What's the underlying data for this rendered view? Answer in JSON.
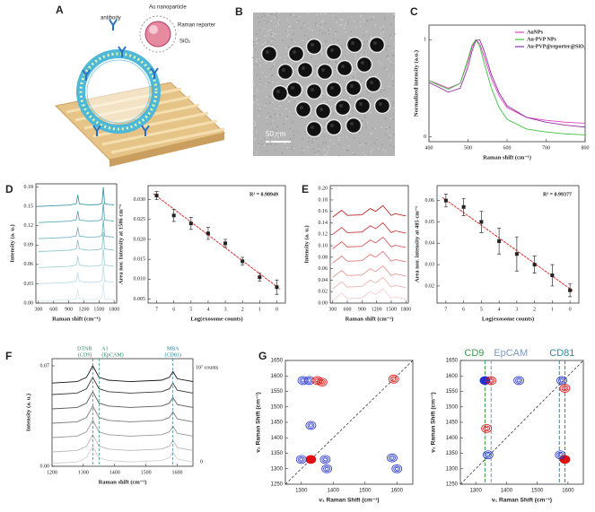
{
  "illustration": {
    "panel": "A",
    "labels": [
      "antibody",
      "Au nanoparticle",
      "Raman reporter",
      "SiO₂"
    ]
  },
  "micrograph": {
    "panel": "B",
    "scale_bar": "50 nm"
  },
  "chart_data": [
    {
      "type": "line",
      "panel": "C",
      "xlabel": "Raman shift (cm⁻¹)",
      "ylabel": "Normalized intensity (a.u.)",
      "x": [
        400,
        420,
        450,
        480,
        500,
        510,
        520,
        530,
        540,
        560,
        580,
        600,
        650,
        700,
        750,
        800
      ],
      "series": [
        {
          "name": "AuNPs",
          "color": "#e040c0",
          "values": [
            0.58,
            0.55,
            0.5,
            0.55,
            0.78,
            0.92,
            1.0,
            0.96,
            0.84,
            0.6,
            0.42,
            0.3,
            0.2,
            0.17,
            0.15,
            0.14
          ]
        },
        {
          "name": "Au-PVP NPs",
          "color": "#40c040",
          "values": [
            0.58,
            0.54,
            0.49,
            0.55,
            0.8,
            0.94,
            1.0,
            0.93,
            0.78,
            0.5,
            0.3,
            0.18,
            0.08,
            0.05,
            0.03,
            0.02
          ]
        },
        {
          "name": "Au-PVP@reporter@SiO₂",
          "color": "#9030a0",
          "values": [
            0.56,
            0.52,
            0.46,
            0.5,
            0.72,
            0.88,
            0.99,
            1.0,
            0.9,
            0.64,
            0.45,
            0.32,
            0.2,
            0.15,
            0.12,
            0.1
          ]
        }
      ],
      "xlim": [
        400,
        800
      ],
      "ylim": [
        -0.05,
        1.15
      ],
      "xticks": [
        400,
        500,
        600,
        700,
        800
      ],
      "yticks": [
        0,
        1
      ],
      "legend": "upper right"
    },
    {
      "type": "line",
      "panel": "D",
      "xlabel": "Raman shift (cm⁻¹)",
      "ylabel": "Intensity (a. u.)",
      "x": [
        300,
        600,
        900,
        1050,
        1080,
        1110,
        1300,
        1500,
        1560,
        1586,
        1610,
        1800
      ],
      "series": [
        {
          "color": "#d4eaee",
          "values": [
            0.003,
            0.004,
            0.005,
            0.007,
            0.021,
            0.007,
            0.005,
            0.006,
            0.008,
            0.033,
            0.007,
            0.005
          ]
        },
        {
          "color": "#bfe0e6",
          "values": [
            0.03,
            0.031,
            0.032,
            0.034,
            0.048,
            0.034,
            0.032,
            0.033,
            0.035,
            0.06,
            0.034,
            0.032
          ]
        },
        {
          "color": "#a6d4dc",
          "values": [
            0.055,
            0.056,
            0.057,
            0.059,
            0.073,
            0.059,
            0.057,
            0.058,
            0.06,
            0.085,
            0.059,
            0.057
          ]
        },
        {
          "color": "#8cc7d1",
          "values": [
            0.08,
            0.081,
            0.082,
            0.084,
            0.098,
            0.084,
            0.082,
            0.083,
            0.085,
            0.11,
            0.084,
            0.082
          ]
        },
        {
          "color": "#72b9c5",
          "values": [
            0.1,
            0.101,
            0.102,
            0.104,
            0.118,
            0.104,
            0.102,
            0.103,
            0.105,
            0.13,
            0.104,
            0.102
          ]
        },
        {
          "color": "#58abb9",
          "values": [
            0.125,
            0.126,
            0.127,
            0.129,
            0.143,
            0.129,
            0.127,
            0.128,
            0.13,
            0.155,
            0.129,
            0.127
          ]
        },
        {
          "color": "#3a9bab",
          "values": [
            0.15,
            0.151,
            0.152,
            0.154,
            0.168,
            0.154,
            0.152,
            0.153,
            0.155,
            0.18,
            0.154,
            0.152
          ]
        }
      ],
      "xlim": [
        250,
        1850
      ],
      "ylim": [
        0,
        0.185
      ],
      "xticks": [
        300,
        600,
        900,
        1200,
        1500,
        1800
      ],
      "yticks": [
        {
          "value": 0,
          "label": "0.00"
        },
        0.03,
        0.06,
        0.09,
        0.12,
        0.15,
        0.18
      ]
    },
    {
      "type": "scatter",
      "xlabel": "Log(exosome counts)",
      "ylabel": "Area nor. Intensity at 1586 cm⁻¹",
      "x": [
        7,
        6,
        5,
        4,
        3,
        2,
        1,
        0
      ],
      "values": [
        0.031,
        0.026,
        0.024,
        0.0215,
        0.019,
        0.0145,
        0.0105,
        0.008
      ],
      "errors": [
        0.001,
        0.0015,
        0.0015,
        0.0015,
        0.001,
        0.001,
        0.001,
        0.0018
      ],
      "fit": {
        "x": [
          7.2,
          -0.2
        ],
        "y": [
          0.0315,
          0.0075
        ]
      },
      "annotation": "R² = 0.98949",
      "xlim": [
        7.5,
        -0.5
      ],
      "ylim": [
        0.004,
        0.0335
      ],
      "xticks": [
        7,
        6,
        5,
        4,
        3,
        2,
        1,
        0
      ],
      "yticks": [
        0.005,
        {
          "value": 0.01,
          "label": "0.010"
        },
        0.015,
        {
          "value": 0.02,
          "label": "0.020"
        },
        0.025,
        {
          "value": 0.03,
          "label": "0.030"
        }
      ]
    },
    {
      "type": "line",
      "panel": "E",
      "xlabel": "Raman shift (cm⁻¹)",
      "ylabel": "Intensity (a. u.)",
      "x": [
        300,
        485,
        600,
        900,
        1070,
        1180,
        1330,
        1500,
        1580,
        1800
      ],
      "series": [
        {
          "color": "#f6d0d0",
          "values": [
            0.005,
            0.017,
            0.008,
            0.009,
            0.02,
            0.015,
            0.025,
            0.008,
            0.011,
            0.007
          ]
        },
        {
          "color": "#f0b4b4",
          "values": [
            0.025,
            0.037,
            0.028,
            0.029,
            0.04,
            0.035,
            0.045,
            0.028,
            0.031,
            0.027
          ]
        },
        {
          "color": "#ea9898",
          "values": [
            0.045,
            0.057,
            0.048,
            0.049,
            0.06,
            0.055,
            0.065,
            0.048,
            0.051,
            0.047
          ]
        },
        {
          "color": "#e27a7a",
          "values": [
            0.07,
            0.082,
            0.073,
            0.074,
            0.085,
            0.08,
            0.09,
            0.073,
            0.076,
            0.072
          ]
        },
        {
          "color": "#d85c5c",
          "values": [
            0.095,
            0.107,
            0.098,
            0.099,
            0.11,
            0.105,
            0.115,
            0.098,
            0.101,
            0.097
          ]
        },
        {
          "color": "#cc4040",
          "values": [
            0.12,
            0.132,
            0.123,
            0.124,
            0.135,
            0.13,
            0.14,
            0.123,
            0.126,
            0.122
          ]
        },
        {
          "color": "#bb2222",
          "values": [
            0.15,
            0.162,
            0.153,
            0.154,
            0.165,
            0.16,
            0.17,
            0.153,
            0.156,
            0.152
          ]
        }
      ],
      "xlim": [
        250,
        1850
      ],
      "ylim": [
        0,
        0.205
      ],
      "xticks": [
        300,
        600,
        900,
        1200,
        1500,
        1800
      ],
      "yticks": [
        {
          "value": 0,
          "label": "0.00"
        },
        0.02,
        0.04,
        0.06,
        0.08,
        {
          "value": 0.1,
          "label": "0.10"
        },
        0.12,
        0.14,
        0.16,
        0.18,
        {
          "value": 0.2,
          "label": "0.20"
        }
      ]
    },
    {
      "type": "scatter",
      "xlabel": "Log(exosome counts)",
      "ylabel": "Area nor. intensity at 485 cm⁻¹",
      "x": [
        7,
        6,
        5,
        4,
        3,
        2,
        1,
        0
      ],
      "values": [
        0.06,
        0.057,
        0.05,
        0.041,
        0.035,
        0.03,
        0.025,
        0.018
      ],
      "errors": [
        0.003,
        0.004,
        0.005,
        0.006,
        0.008,
        0.004,
        0.005,
        0.003
      ],
      "fit": {
        "x": [
          7.2,
          -0.2
        ],
        "y": [
          0.0615,
          0.0175
        ]
      },
      "annotation": "R² = 0.99377",
      "xlim": [
        7.5,
        -0.5
      ],
      "ylim": [
        0.012,
        0.067
      ],
      "xticks": [
        7,
        6,
        5,
        4,
        3,
        2,
        1,
        0
      ],
      "yticks": [
        0.02,
        0.03,
        0.04,
        0.05,
        0.06
      ]
    },
    {
      "type": "line",
      "panel": "F",
      "xlabel": "Raman shift (cm⁻¹)",
      "ylabel": "Intensity (a. u.)",
      "x": [
        1200,
        1280,
        1310,
        1330,
        1350,
        1380,
        1450,
        1550,
        1575,
        1586,
        1600,
        1650
      ],
      "series": [
        {
          "color": "#d0d0d0",
          "values": [
            0.002,
            0.003,
            0.006,
            0.014,
            0.006,
            0.004,
            0.003,
            0.004,
            0.006,
            0.01,
            0.005,
            0.003
          ]
        },
        {
          "color": "#b8b8b8",
          "values": [
            0.01,
            0.011,
            0.014,
            0.022,
            0.014,
            0.012,
            0.011,
            0.012,
            0.014,
            0.018,
            0.013,
            0.011
          ]
        },
        {
          "color": "#9a9a9a",
          "values": [
            0.02,
            0.021,
            0.024,
            0.032,
            0.024,
            0.022,
            0.021,
            0.022,
            0.024,
            0.028,
            0.023,
            0.021
          ]
        },
        {
          "color": "#7a7a7a",
          "values": [
            0.03,
            0.031,
            0.034,
            0.042,
            0.034,
            0.032,
            0.031,
            0.032,
            0.034,
            0.038,
            0.033,
            0.031
          ]
        },
        {
          "color": "#5a5a5a",
          "values": [
            0.04,
            0.041,
            0.044,
            0.052,
            0.044,
            0.042,
            0.041,
            0.042,
            0.044,
            0.048,
            0.043,
            0.041
          ]
        },
        {
          "color": "#3a3a3a",
          "values": [
            0.05,
            0.051,
            0.054,
            0.062,
            0.054,
            0.052,
            0.051,
            0.052,
            0.054,
            0.058,
            0.053,
            0.051
          ]
        },
        {
          "color": "#111111",
          "values": [
            0.058,
            0.059,
            0.062,
            0.07,
            0.062,
            0.06,
            0.059,
            0.06,
            0.062,
            0.066,
            0.061,
            0.059
          ]
        }
      ],
      "annotations": [
        {
          "text": "DTNB",
          "sub": "(CD9)",
          "x": 1330,
          "color": "#2a8a6a"
        },
        {
          "text": "A1",
          "sub": "(EpCAM)",
          "x": 1350,
          "color": "#2a8a6a"
        },
        {
          "text": "MBA",
          "sub": "(CD81)",
          "x": 1586,
          "color": "#2a7aa0"
        }
      ],
      "top_label": "10⁷ counts",
      "bottom_label": "0",
      "xlim": [
        1200,
        1650
      ],
      "ylim": [
        0,
        0.075
      ],
      "xticks": [
        1200,
        1300,
        1400,
        1500,
        1600
      ],
      "yticks": [
        {
          "value": 0,
          "label": "0.00"
        },
        0.07
      ]
    },
    {
      "type": "contour",
      "panel": "G",
      "xlabel": "ν₁ Raman Shift (cm⁻¹)",
      "ylabel": "ν₂ Raman Shift (cm⁻¹)",
      "peaks": [
        {
          "x": 1330,
          "y": 1330,
          "color": "#e01010",
          "filled": true
        },
        {
          "x": 1305,
          "y": 1585,
          "color": "#2233cc",
          "filled": false
        },
        {
          "x": 1325,
          "y": 1585,
          "color": "#2233cc",
          "filled": false
        },
        {
          "x": 1350,
          "y": 1585,
          "color": "#e01010",
          "filled": false
        },
        {
          "x": 1365,
          "y": 1580,
          "color": "#e01010",
          "filled": false
        },
        {
          "x": 1590,
          "y": 1590,
          "color": "#e01010",
          "filled": false
        },
        {
          "x": 1330,
          "y": 1440,
          "color": "#2233cc",
          "filled": false
        },
        {
          "x": 1300,
          "y": 1330,
          "color": "#2233cc",
          "filled": false
        },
        {
          "x": 1375,
          "y": 1330,
          "color": "#2233cc",
          "filled": false
        },
        {
          "x": 1380,
          "y": 1300,
          "color": "#2233cc",
          "filled": false
        },
        {
          "x": 1585,
          "y": 1335,
          "color": "#2233cc",
          "filled": false
        },
        {
          "x": 1600,
          "y": 1300,
          "color": "#2233cc",
          "filled": false
        }
      ],
      "xlim": [
        1250,
        1650
      ],
      "ylim": [
        1250,
        1650
      ],
      "xticks": [
        1300,
        1400,
        1500,
        1600
      ],
      "yticks": [
        1250,
        1300,
        1350,
        1400,
        1450,
        1500,
        1550,
        1600,
        1650
      ]
    },
    {
      "type": "contour",
      "xlabel": "ν₁ Raman Shift (cm⁻¹)",
      "ylabel": "ν₂ Raman Shift (cm⁻¹)",
      "peaks": [
        {
          "x": 1330,
          "y": 1585,
          "color": "#2233cc",
          "filled": true
        },
        {
          "x": 1350,
          "y": 1585,
          "color": "#e01010",
          "filled": false
        },
        {
          "x": 1440,
          "y": 1585,
          "color": "#2233cc",
          "filled": false
        },
        {
          "x": 1580,
          "y": 1585,
          "color": "#2233cc",
          "filled": false
        },
        {
          "x": 1590,
          "y": 1560,
          "color": "#e01010",
          "filled": false
        },
        {
          "x": 1335,
          "y": 1430,
          "color": "#e01010",
          "filled": false
        },
        {
          "x": 1340,
          "y": 1345,
          "color": "#2233cc",
          "filled": false
        },
        {
          "x": 1590,
          "y": 1330,
          "color": "#e01010",
          "filled": true
        },
        {
          "x": 1575,
          "y": 1345,
          "color": "#2233cc",
          "filled": false
        }
      ],
      "markers": [
        {
          "label": "CD9",
          "x": [
            1330
          ],
          "color": "#3a9a4a"
        },
        {
          "label": "EpCAM",
          "x": [
            1350
          ],
          "color": "#7a9ac0"
        },
        {
          "label": "CD81",
          "x": [
            1572,
            1590
          ],
          "color": "#2a8aa0"
        }
      ],
      "xlim": [
        1250,
        1650
      ],
      "ylim": [
        1250,
        1650
      ],
      "xticks": [
        1300,
        1400,
        1500,
        1600
      ],
      "yticks": [
        1250,
        1300,
        1350,
        1400,
        1450,
        1500,
        1550,
        1600,
        1650
      ]
    }
  ]
}
